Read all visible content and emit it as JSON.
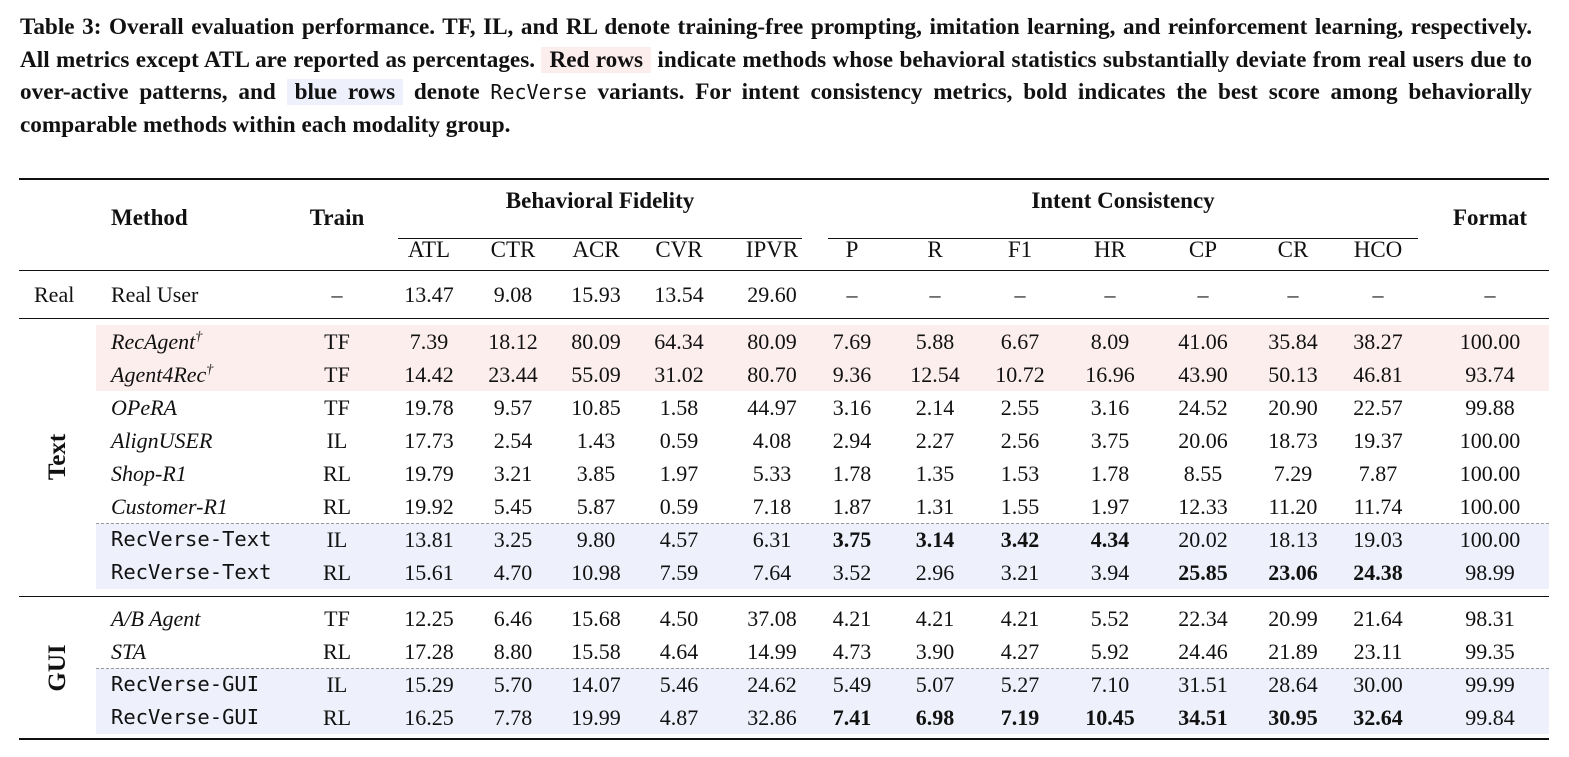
{
  "caption": {
    "part1": "Table 3: Overall evaluation performance. TF, IL, and RL denote training-free prompting, imitation learning, and reinforcement learning, respectively. All metrics except ATL are reported as percentages. ",
    "red_label": "Red rows",
    "part2": " indicate methods whose behavioral statistics substantially deviate from real users due to over-active patterns, and ",
    "blue_label": "blue rows",
    "part3": " denote ",
    "mono_name": "RecVerse",
    "part4": " variants. For intent consistency metrics, bold indicates the best score among behaviorally comparable methods within each modality group."
  },
  "headers": {
    "method": "Method",
    "train": "Train",
    "behavioral": "Behavioral Fidelity",
    "intent": "Intent Consistency",
    "format": "Format",
    "metrics": [
      "ATL",
      "CTR",
      "ACR",
      "CVR",
      "IPVR",
      "P",
      "R",
      "F1",
      "HR",
      "CP",
      "CR",
      "HCO"
    ]
  },
  "real_row": {
    "group": "Real",
    "method": "Real User",
    "train": "–",
    "values": [
      "13.47",
      "9.08",
      "15.93",
      "13.54",
      "29.60",
      "–",
      "–",
      "–",
      "–",
      "–",
      "–",
      "–",
      "–"
    ]
  },
  "groups": [
    {
      "label": "Text",
      "rows": [
        {
          "method": "RecAgent",
          "dagger": "†",
          "style": "italic",
          "hl": "red",
          "train": "TF",
          "values": [
            "7.39",
            "18.12",
            "80.09",
            "64.34",
            "80.09",
            "7.69",
            "5.88",
            "6.67",
            "8.09",
            "41.06",
            "35.84",
            "38.27",
            "100.00"
          ],
          "bold": []
        },
        {
          "method": "Agent4Rec",
          "dagger": "†",
          "style": "italic",
          "hl": "red",
          "train": "TF",
          "values": [
            "14.42",
            "23.44",
            "55.09",
            "31.02",
            "80.70",
            "9.36",
            "12.54",
            "10.72",
            "16.96",
            "43.90",
            "50.13",
            "46.81",
            "93.74"
          ],
          "bold": []
        },
        {
          "method": "OPeRA",
          "style": "italic",
          "hl": "",
          "train": "TF",
          "values": [
            "19.78",
            "9.57",
            "10.85",
            "1.58",
            "44.97",
            "3.16",
            "2.14",
            "2.55",
            "3.16",
            "24.52",
            "20.90",
            "22.57",
            "99.88"
          ],
          "bold": []
        },
        {
          "method": "AlignUSER",
          "style": "italic",
          "hl": "",
          "train": "IL",
          "values": [
            "17.73",
            "2.54",
            "1.43",
            "0.59",
            "4.08",
            "2.94",
            "2.27",
            "2.56",
            "3.75",
            "20.06",
            "18.73",
            "19.37",
            "100.00"
          ],
          "bold": []
        },
        {
          "method": "Shop-R1",
          "style": "italic",
          "hl": "",
          "train": "RL",
          "values": [
            "19.79",
            "3.21",
            "3.85",
            "1.97",
            "5.33",
            "1.78",
            "1.35",
            "1.53",
            "1.78",
            "8.55",
            "7.29",
            "7.87",
            "100.00"
          ],
          "bold": []
        },
        {
          "method": "Customer-R1",
          "style": "italic",
          "hl": "",
          "train": "RL",
          "values": [
            "19.92",
            "5.45",
            "5.87",
            "0.59",
            "7.18",
            "1.87",
            "1.31",
            "1.55",
            "1.97",
            "12.33",
            "11.20",
            "11.74",
            "100.00"
          ],
          "bold": []
        },
        {
          "method": "RecVerse-Text",
          "style": "mono",
          "hl": "blue",
          "dashed_before": true,
          "train": "IL",
          "values": [
            "13.81",
            "3.25",
            "9.80",
            "4.57",
            "6.31",
            "3.75",
            "3.14",
            "3.42",
            "4.34",
            "20.02",
            "18.13",
            "19.03",
            "100.00"
          ],
          "bold": [
            5,
            6,
            7,
            8
          ]
        },
        {
          "method": "RecVerse-Text",
          "style": "mono",
          "hl": "blue",
          "train": "RL",
          "values": [
            "15.61",
            "4.70",
            "10.98",
            "7.59",
            "7.64",
            "3.52",
            "2.96",
            "3.21",
            "3.94",
            "25.85",
            "23.06",
            "24.38",
            "98.99"
          ],
          "bold": [
            9,
            10,
            11
          ]
        }
      ]
    },
    {
      "label": "GUI",
      "rows": [
        {
          "method": "A/B Agent",
          "style": "italic",
          "hl": "",
          "train": "TF",
          "values": [
            "12.25",
            "6.46",
            "15.68",
            "4.50",
            "37.08",
            "4.21",
            "4.21",
            "4.21",
            "5.52",
            "22.34",
            "20.99",
            "21.64",
            "98.31"
          ],
          "bold": []
        },
        {
          "method": "STA",
          "style": "italic",
          "hl": "",
          "train": "RL",
          "values": [
            "17.28",
            "8.80",
            "15.58",
            "4.64",
            "14.99",
            "4.73",
            "3.90",
            "4.27",
            "5.92",
            "24.46",
            "21.89",
            "23.11",
            "99.35"
          ],
          "bold": []
        },
        {
          "method": "RecVerse-GUI",
          "style": "mono",
          "hl": "blue",
          "dashed_before": true,
          "train": "IL",
          "values": [
            "15.29",
            "5.70",
            "14.07",
            "5.46",
            "24.62",
            "5.49",
            "5.07",
            "5.27",
            "7.10",
            "31.51",
            "28.64",
            "30.00",
            "99.99"
          ],
          "bold": []
        },
        {
          "method": "RecVerse-GUI",
          "style": "mono",
          "hl": "blue",
          "train": "RL",
          "values": [
            "16.25",
            "7.78",
            "19.99",
            "4.87",
            "32.86",
            "7.41",
            "6.98",
            "7.19",
            "10.45",
            "34.51",
            "30.95",
            "32.64",
            "99.84"
          ],
          "bold": [
            5,
            6,
            7,
            8,
            9,
            10,
            11
          ]
        }
      ]
    }
  ]
}
